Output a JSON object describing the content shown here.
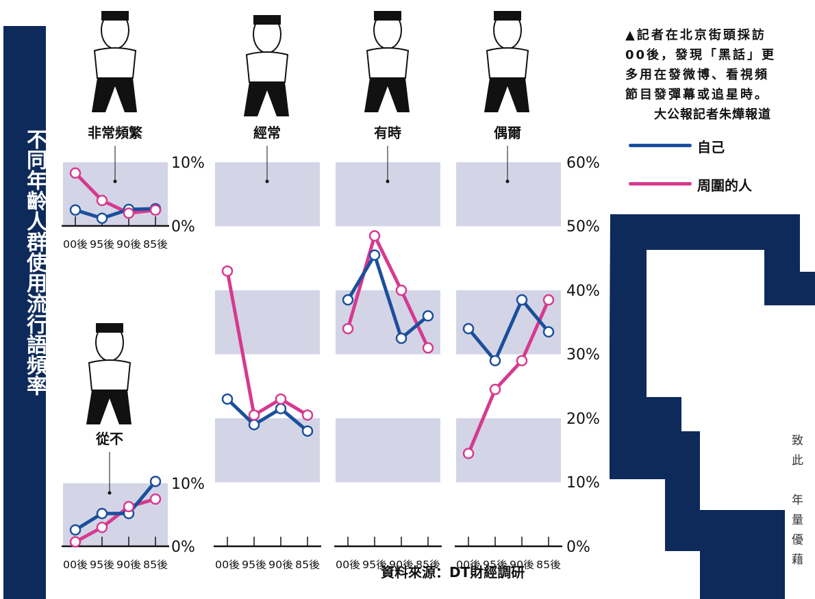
{
  "title": "不同年齡人群使用流行語頻率",
  "caption": {
    "text": "▲記者在北京街頭採訪\n00後，發現「黑話」更\n多用在發微博、看視頻\n節目發彈幕或追星時。",
    "byline": "大公報記者朱燁報道"
  },
  "legend": [
    {
      "label": "自己",
      "color": "#1b4f9c"
    },
    {
      "label": "周圍的人",
      "color": "#d63a8f"
    }
  ],
  "source": "資料來源：DT財經調研",
  "body_text_fragment": "致\n此\n\n年\n量\n優\n藉",
  "colors": {
    "self": "#1b4f9c",
    "others": "#d63a8f",
    "band": "#d3d5e6",
    "navy": "#0d2a5b"
  },
  "chart_data": [
    {
      "type": "line",
      "title": "非常頻繁",
      "categories": [
        "00後",
        "95後",
        "90後",
        "85後"
      ],
      "ylim": [
        0,
        10
      ],
      "yticks": [
        "10%",
        "0%"
      ],
      "series": [
        {
          "name": "自己",
          "values": [
            2.5,
            1.2,
            2.6,
            2.7
          ]
        },
        {
          "name": "周圍的人",
          "values": [
            8.3,
            4.0,
            2.0,
            2.5
          ]
        }
      ]
    },
    {
      "type": "line",
      "title": "從不",
      "categories": [
        "00後",
        "95後",
        "90後",
        "85後"
      ],
      "ylim": [
        0,
        10
      ],
      "yticks": [
        "10%",
        "0%"
      ],
      "series": [
        {
          "name": "自己",
          "values": [
            2.6,
            5.2,
            5.2,
            10.3
          ]
        },
        {
          "name": "周圍的人",
          "values": [
            0.7,
            3.0,
            6.3,
            7.5
          ]
        }
      ]
    },
    {
      "type": "line",
      "title": "經常",
      "categories": [
        "00後",
        "95後",
        "90後",
        "85後"
      ],
      "ylim": [
        0,
        60
      ],
      "yticks": [
        "60%",
        "50%",
        "40%",
        "30%",
        "20%",
        "10%",
        "0%"
      ],
      "series": [
        {
          "name": "自己",
          "values": [
            23,
            19,
            21.5,
            18
          ]
        },
        {
          "name": "周圍的人",
          "values": [
            43,
            20.5,
            23,
            20.5
          ]
        }
      ]
    },
    {
      "type": "line",
      "title": "有時",
      "categories": [
        "00後",
        "95後",
        "90後",
        "85後"
      ],
      "ylim": [
        0,
        60
      ],
      "series": [
        {
          "name": "自己",
          "values": [
            38.5,
            45.5,
            32.5,
            36
          ]
        },
        {
          "name": "周圍的人",
          "values": [
            34,
            48.5,
            40,
            31
          ]
        }
      ]
    },
    {
      "type": "line",
      "title": "偶爾",
      "categories": [
        "00後",
        "95後",
        "90後",
        "85後"
      ],
      "ylim": [
        0,
        60
      ],
      "series": [
        {
          "name": "自己",
          "values": [
            34,
            29,
            38.5,
            33.5
          ]
        },
        {
          "name": "周圍的人",
          "values": [
            14.5,
            24.5,
            29,
            38.5
          ]
        }
      ]
    }
  ]
}
